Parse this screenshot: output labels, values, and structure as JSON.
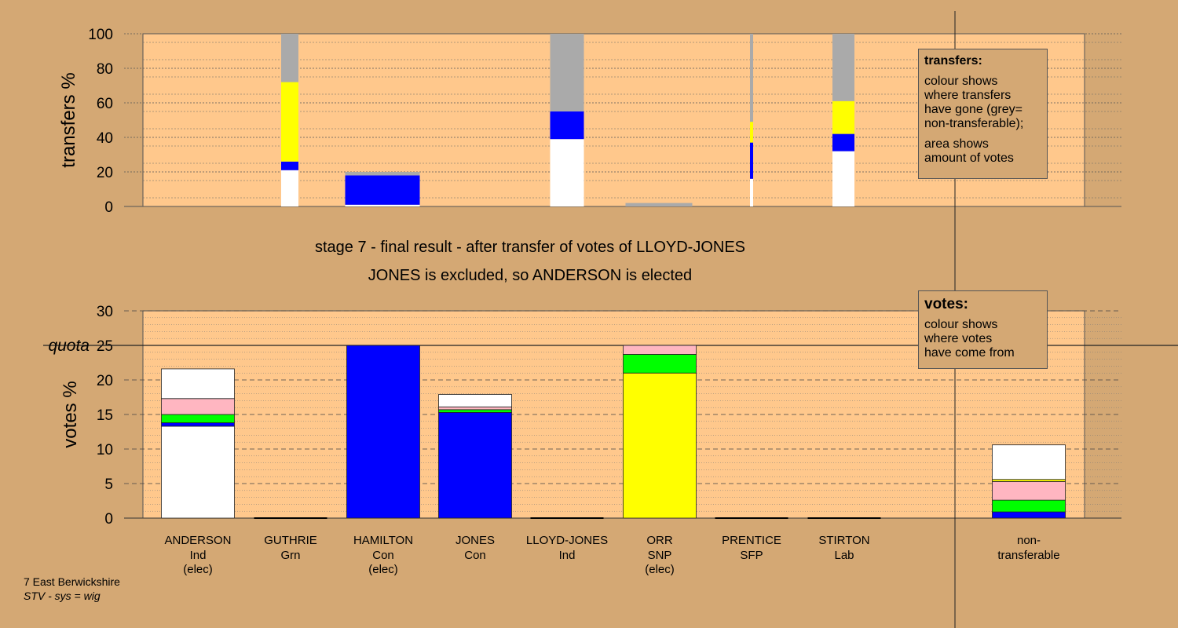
{
  "headings": {
    "stage": "stage 7 - final result - after transfer of votes of LLOYD-JONES",
    "result": "JONES is excluded, so ANDERSON is elected"
  },
  "footer": {
    "ward": "7 East Berwickshire",
    "system": "STV - sys = wig"
  },
  "transfers_legend": {
    "title": "transfers:",
    "lines1": [
      "colour shows",
      "where transfers",
      "have gone (grey=",
      "non-transferable);"
    ],
    "lines2": [
      "area shows",
      "amount of votes"
    ]
  },
  "votes_legend": {
    "title": "votes:",
    "lines": [
      "colour shows",
      "where votes",
      "have come from"
    ]
  },
  "colors": {
    "white": "#ffffff",
    "blue": "#0000ff",
    "green": "#00ff00",
    "pink": "#ffb6c1",
    "yellow": "#ffff00",
    "grey": "#aaaaaa",
    "plot_bg": "#ffc88c",
    "page_bg": "#d4a874"
  },
  "chart_data": [
    {
      "type": "bar",
      "ylabel": "transfers %",
      "ylim": [
        0,
        100
      ],
      "yticks": [
        0,
        20,
        40,
        60,
        80,
        100
      ],
      "bars": [
        {
          "name": "ANDERSON",
          "width_frac": 0.22,
          "segments": [
            {
              "color": "white",
              "value": 21
            },
            {
              "color": "blue",
              "value": 5
            },
            {
              "color": "yellow",
              "value": 46
            },
            {
              "color": "grey",
              "value": 28
            }
          ]
        },
        {
          "name": "HAMILTON",
          "width_frac": 0.95,
          "segments": [
            {
              "color": "white",
              "value": 1
            },
            {
              "color": "blue",
              "value": 17
            },
            {
              "color": "grey",
              "value": 2
            }
          ]
        },
        {
          "name": "LLOYD-JONES",
          "width_frac": 0.43,
          "segments": [
            {
              "color": "white",
              "value": 39
            },
            {
              "color": "blue",
              "value": 16
            },
            {
              "color": "grey",
              "value": 45
            }
          ]
        },
        {
          "name": "ORR",
          "width_frac": 0.85,
          "segments": [
            {
              "color": "grey",
              "value": 2
            }
          ]
        },
        {
          "name": "PRENTICE",
          "width_frac": 0.04,
          "segments": [
            {
              "color": "white",
              "value": 16
            },
            {
              "color": "blue",
              "value": 21
            },
            {
              "color": "yellow",
              "value": 12
            },
            {
              "color": "grey",
              "value": 51
            }
          ]
        },
        {
          "name": "STIRTON",
          "width_frac": 0.28,
          "segments": [
            {
              "color": "white",
              "value": 32
            },
            {
              "color": "blue",
              "value": 10
            },
            {
              "color": "yellow",
              "value": 19
            },
            {
              "color": "grey",
              "value": 39
            }
          ]
        }
      ]
    },
    {
      "type": "bar",
      "ylabel": "votes %",
      "ylim": [
        0,
        30
      ],
      "yticks": [
        0,
        5,
        10,
        15,
        20,
        25,
        30
      ],
      "quota": 25,
      "quota_label": "quota",
      "categories": [
        {
          "name": "ANDERSON",
          "party": "Ind",
          "note": "(elec)"
        },
        {
          "name": "GUTHRIE",
          "party": "Grn",
          "note": ""
        },
        {
          "name": "HAMILTON",
          "party": "Con",
          "note": "(elec)"
        },
        {
          "name": "JONES",
          "party": "Con",
          "note": ""
        },
        {
          "name": "LLOYD-JONES",
          "party": "Ind",
          "note": ""
        },
        {
          "name": "ORR",
          "party": "SNP",
          "note": "(elec)"
        },
        {
          "name": "PRENTICE",
          "party": "SFP",
          "note": ""
        },
        {
          "name": "STIRTON",
          "party": "Lab",
          "note": ""
        },
        {
          "name": "non-",
          "party": "transferable",
          "note": ""
        }
      ],
      "series": [
        {
          "name": "ANDERSON",
          "segments": [
            {
              "color": "white",
              "value": 13.3
            },
            {
              "color": "blue",
              "value": 0.5
            },
            {
              "color": "green",
              "value": 1.2
            },
            {
              "color": "pink",
              "value": 2.3
            },
            {
              "color": "white",
              "value": 4.3
            }
          ]
        },
        {
          "name": "GUTHRIE",
          "segments": []
        },
        {
          "name": "HAMILTON",
          "segments": [
            {
              "color": "blue",
              "value": 25.0
            }
          ]
        },
        {
          "name": "JONES",
          "segments": [
            {
              "color": "blue",
              "value": 15.3
            },
            {
              "color": "green",
              "value": 0.4
            },
            {
              "color": "pink",
              "value": 0.4
            },
            {
              "color": "white",
              "value": 1.8
            }
          ]
        },
        {
          "name": "LLOYD-JONES",
          "segments": []
        },
        {
          "name": "ORR",
          "segments": [
            {
              "color": "yellow",
              "value": 21.0
            },
            {
              "color": "green",
              "value": 2.7
            },
            {
              "color": "pink",
              "value": 1.3
            }
          ]
        },
        {
          "name": "PRENTICE",
          "segments": []
        },
        {
          "name": "STIRTON",
          "segments": []
        },
        {
          "name": "non-transferable",
          "segments": [
            {
              "color": "blue",
              "value": 0.9
            },
            {
              "color": "green",
              "value": 1.7
            },
            {
              "color": "pink",
              "value": 2.7
            },
            {
              "color": "yellow",
              "value": 0.3
            },
            {
              "color": "white",
              "value": 5.0
            }
          ]
        }
      ]
    }
  ]
}
